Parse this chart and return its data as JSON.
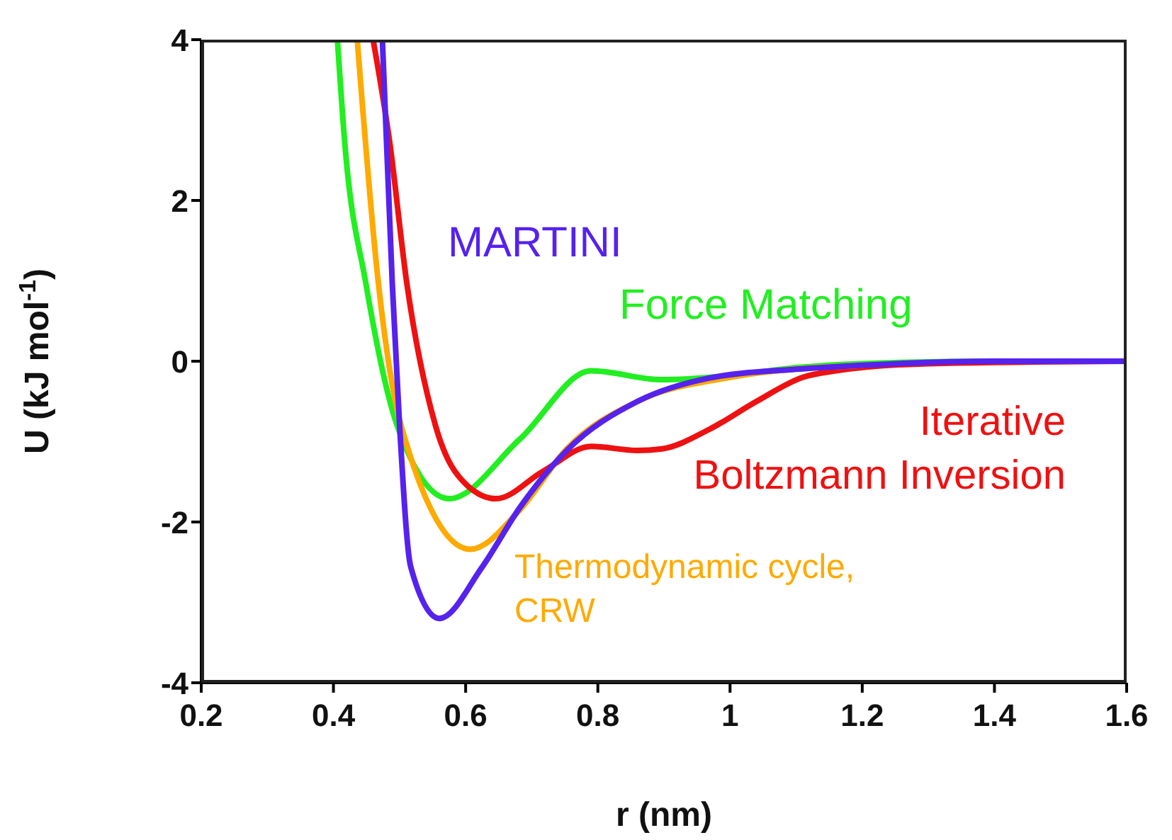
{
  "chart_data": {
    "type": "line",
    "xlabel": "r (nm)",
    "ylabel": "U (kJ mol$^{-1}$)",
    "xlim": [
      0.2,
      1.6
    ],
    "xticks": [
      0.2,
      0.4,
      0.6,
      0.8,
      1,
      1.2,
      1.4,
      1.6
    ],
    "ylim": [
      -4,
      4
    ],
    "yticks": [
      -4,
      -2,
      0,
      2,
      4
    ],
    "marker": "none",
    "line_style": "solid",
    "series": [
      {
        "name": "Force Matching",
        "color": "#22ee22",
        "x": [
          0.406,
          0.417,
          0.449,
          0.496,
          0.575,
          0.682,
          0.79,
          0.897,
          1,
          1.1,
          1.2,
          1.4,
          1.6
        ],
        "values": [
          4,
          2.73,
          0.97,
          -0.79,
          -1.71,
          -0.97,
          -0.12,
          -0.23,
          -0.18,
          -0.08,
          -0.03,
          0,
          0
        ]
      },
      {
        "name": "Iterative Boltzmann Inversion",
        "color": "#ee1111",
        "x": [
          0.46,
          0.485,
          0.511,
          0.554,
          0.603,
          0.646,
          0.717,
          0.79,
          0.86,
          0.897,
          0.968,
          1.04,
          1.11,
          1.16,
          1.3,
          1.6
        ],
        "values": [
          4,
          2.73,
          0.97,
          -0.79,
          -1.55,
          -1.71,
          -1.37,
          -1.06,
          -1.11,
          -1.09,
          -0.85,
          -0.5,
          -0.2,
          -0.12,
          -0.03,
          0
        ]
      },
      {
        "name": "Thermodynamic cycle, CRW",
        "color": "#ffaa00",
        "x": [
          0.436,
          0.468,
          0.502,
          0.607,
          0.682,
          0.753,
          0.86,
          1,
          1.2
        ],
        "values": [
          4,
          0.97,
          -0.79,
          -2.34,
          -1.85,
          -1.09,
          -0.5,
          -0.2,
          -0.05
        ]
      },
      {
        "name": "MARTINI",
        "color": "#5522ee",
        "x": [
          0.474,
          0.489,
          0.5,
          0.517,
          0.56,
          0.625,
          0.682,
          0.753,
          0.86,
          0.968,
          1.1,
          1.2,
          1.4,
          1.6
        ],
        "values": [
          4,
          0.97,
          -0.79,
          -2.56,
          -3.2,
          -2.56,
          -1.82,
          -1.11,
          -0.5,
          -0.21,
          -0.1,
          -0.05,
          0,
          0
        ]
      }
    ]
  }
}
